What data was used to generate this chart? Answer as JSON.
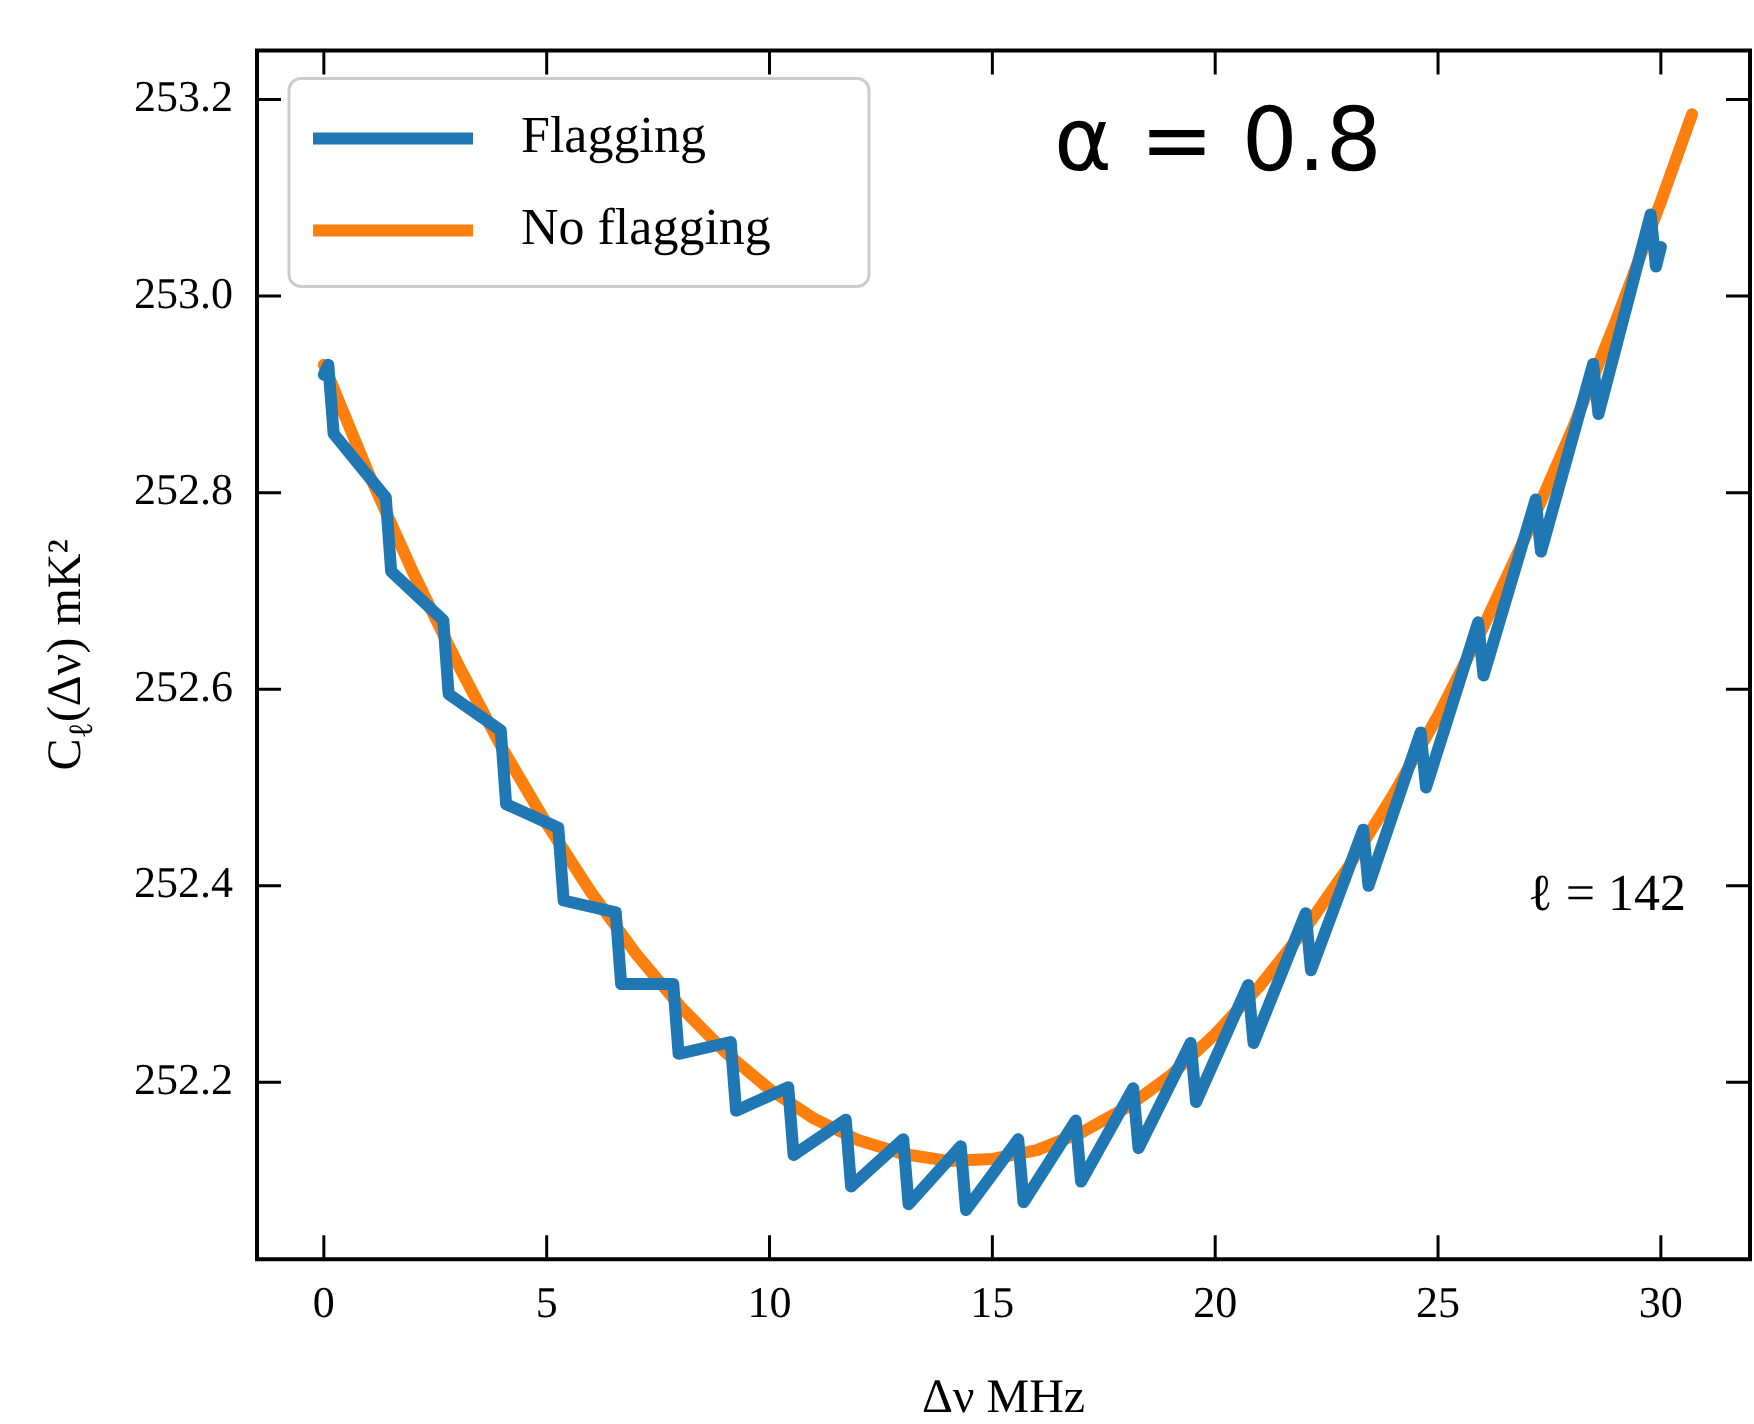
{
  "chart_data": {
    "type": "line",
    "xlabel": "Δν MHz",
    "ylabel": "C$_{ℓ}$(Δν) mK²",
    "annotations": [
      "α = 0.8",
      "ℓ = 142"
    ],
    "xlim": [
      -1.5,
      32
    ],
    "xticks": [
      0,
      5,
      10,
      15,
      20,
      25,
      30
    ],
    "ylim": [
      252.02,
      253.25
    ],
    "yticks": [
      {
        "value": 252.2,
        "label": "252.2"
      },
      {
        "value": 252.4,
        "label": "252.4"
      },
      {
        "value": 252.6,
        "label": "252.6"
      },
      {
        "value": 252.8,
        "label": "252.8"
      },
      {
        "value": 253,
        "label": "253.0"
      },
      {
        "value": 253.2,
        "label": "253.2"
      }
    ],
    "legend": "top left",
    "grid": false,
    "marker": "none",
    "line_style": "solid",
    "series": [
      {
        "name": "Flagging",
        "color": "#1f77b4",
        "x": [
          0,
          0.1,
          0.22,
          1.39,
          1.51,
          2.68,
          2.8,
          3.97,
          4.09,
          5.26,
          5.38,
          6.55,
          6.67,
          7.84,
          7.96,
          9.13,
          9.25,
          10.42,
          10.54,
          11.71,
          11.83,
          13.0,
          13.12,
          14.29,
          14.41,
          15.58,
          15.7,
          16.87,
          16.99,
          18.16,
          18.28,
          19.45,
          19.57,
          20.74,
          20.86,
          22.03,
          22.15,
          23.32,
          23.44,
          24.61,
          24.73,
          25.9,
          26.02,
          27.19,
          27.31,
          28.48,
          28.6,
          29.77,
          29.89,
          30.0
        ],
        "values": [
          252.92,
          252.93,
          252.86,
          252.795,
          252.72,
          252.67,
          252.595,
          252.558,
          252.483,
          252.459,
          252.385,
          252.373,
          252.3,
          252.3,
          252.229,
          252.241,
          252.171,
          252.195,
          252.126,
          252.162,
          252.094,
          252.142,
          252.076,
          252.135,
          252.07,
          252.142,
          252.078,
          252.161,
          252.099,
          252.194,
          252.133,
          252.24,
          252.18,
          252.299,
          252.24,
          252.372,
          252.314,
          252.457,
          252.4,
          252.556,
          252.5,
          252.668,
          252.614,
          252.793,
          252.74,
          252.931,
          252.88,
          253.083,
          253.03,
          253.05
        ]
      },
      {
        "name": "No flagging",
        "color": "#ff7f0e",
        "x": [
          0,
          1,
          2,
          3,
          4,
          5,
          6,
          7,
          8,
          9,
          10,
          11,
          12,
          13,
          14,
          15,
          16,
          17,
          18,
          19,
          20,
          21,
          22,
          23,
          24,
          25,
          26,
          27,
          28,
          29,
          30,
          30.7
        ],
        "values": [
          252.93,
          252.82,
          252.719,
          252.626,
          252.54,
          252.463,
          252.393,
          252.331,
          252.277,
          252.231,
          252.193,
          252.163,
          252.141,
          252.127,
          252.12,
          252.122,
          252.131,
          252.149,
          252.174,
          252.207,
          252.249,
          252.298,
          252.355,
          252.42,
          252.493,
          252.573,
          252.662,
          252.759,
          252.863,
          252.976,
          253.096,
          253.185
        ]
      }
    ]
  }
}
